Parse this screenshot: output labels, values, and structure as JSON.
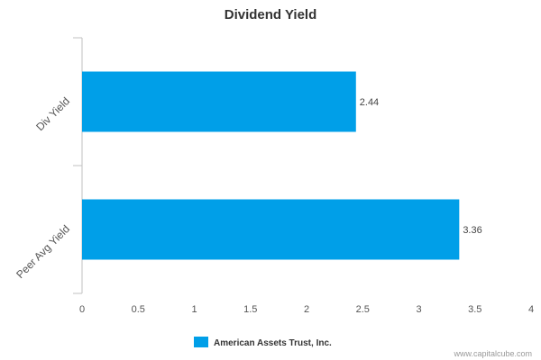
{
  "chart_data": {
    "type": "bar",
    "orientation": "horizontal",
    "title": "Dividend Yield",
    "categories": [
      "Div Yield",
      "Peer Avg Yield"
    ],
    "series": [
      {
        "name": "American Assets Trust, Inc.",
        "values": [
          2.44,
          3.36
        ],
        "color": "#009fe8"
      }
    ],
    "data_labels": [
      "2.44",
      "3.36"
    ],
    "xlim": [
      0,
      4
    ],
    "xticks": [
      "0",
      "0.5",
      "1",
      "1.5",
      "2",
      "2.5",
      "3",
      "3.5",
      "4"
    ],
    "grid": false,
    "legend_position": "bottom-center"
  },
  "credit": "www.capitalcube.com"
}
